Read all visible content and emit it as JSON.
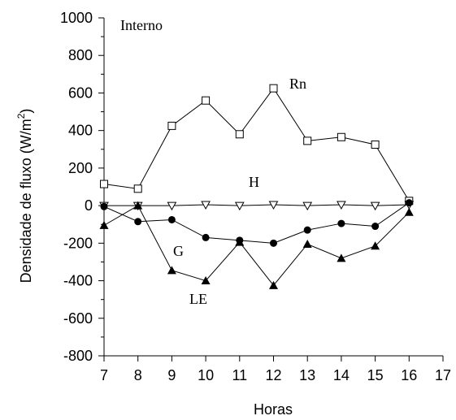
{
  "chart_data": {
    "type": "line",
    "panel_label": "Interno",
    "xlabel": "Horas",
    "ylabel": "Densidade de fluxo (W/m",
    "ylabel_superscript": "2",
    "ylabel_suffix": ")",
    "xlim": [
      7,
      17
    ],
    "ylim": [
      -800,
      1000
    ],
    "x_ticks": [
      "7",
      "8",
      "9",
      "10",
      "11",
      "12",
      "13",
      "14",
      "15",
      "16",
      "17"
    ],
    "y_ticks": [
      "1000",
      "800",
      "600",
      "400",
      "200",
      "0",
      "-200",
      "-400",
      "-600",
      "-800"
    ],
    "grid": false,
    "legend": "none",
    "x": [
      7,
      8,
      9,
      10,
      11,
      12,
      13,
      14,
      15,
      16
    ],
    "series": [
      {
        "name": "Rn",
        "marker": "open-square",
        "values": [
          115,
          90,
          425,
          560,
          380,
          625,
          345,
          365,
          325,
          25
        ]
      },
      {
        "name": "H",
        "marker": "open-triangle-down",
        "values": [
          0,
          0,
          0,
          5,
          0,
          5,
          0,
          5,
          0,
          5
        ]
      },
      {
        "name": "G",
        "marker": "filled-circle",
        "values": [
          -5,
          -85,
          -75,
          -170,
          -185,
          -200,
          -130,
          -95,
          -110,
          15
        ]
      },
      {
        "name": "LE",
        "marker": "filled-triangle-up",
        "values": [
          -105,
          0,
          -345,
          -400,
          -195,
          -425,
          -205,
          -280,
          -215,
          -35
        ]
      }
    ],
    "colors": {
      "line": "#000000",
      "background": "#ffffff"
    }
  }
}
